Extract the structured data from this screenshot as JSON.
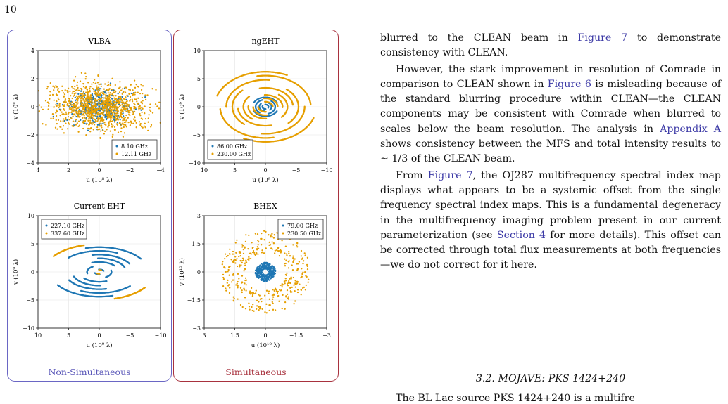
{
  "page_number": "10",
  "groups": {
    "left_label": "Non-Simultaneous",
    "right_label": "Simultaneous",
    "left_color": "#6a66c4",
    "right_color": "#a8323e"
  },
  "colors": {
    "low_freq": "#1f77b4",
    "high_freq": "#e69f00"
  },
  "chart_data": [
    {
      "type": "scatter",
      "title": "VLBA",
      "xlabel": "u (10⁸ λ)",
      "ylabel": "v (10⁸ λ)",
      "xlim": [
        4,
        -4
      ],
      "ylim": [
        -4,
        4
      ],
      "xticks": [
        4,
        2,
        0,
        -2,
        -4
      ],
      "yticks": [
        -4,
        -2,
        0,
        2,
        4
      ],
      "xtick_labels": [
        "4",
        "2",
        "0",
        "−2",
        "−4"
      ],
      "ytick_labels": [
        "−4",
        "−2",
        "0",
        "2",
        "4"
      ],
      "grid": true,
      "legend_position": "bottom-right",
      "series": [
        {
          "name": "8.10 GHz",
          "pattern": "cloud",
          "sx": 1.0,
          "sy": 0.55,
          "count": 200,
          "seed": 3,
          "x": [],
          "y": []
        },
        {
          "name": "12.11 GHz",
          "pattern": "cloud",
          "sx": 1.6,
          "sy": 0.85,
          "count": 520,
          "seed": 7,
          "x": [],
          "y": []
        }
      ]
    },
    {
      "type": "scatter",
      "title": "ngEHT",
      "xlabel": "u (10⁹ λ)",
      "ylabel": "v (10⁹ λ)",
      "xlim": [
        10,
        -10
      ],
      "ylim": [
        -10,
        10
      ],
      "xticks": [
        10,
        5,
        0,
        -5,
        -10
      ],
      "yticks": [
        -10,
        -5,
        0,
        5,
        10
      ],
      "xtick_labels": [
        "10",
        "5",
        "0",
        "−5",
        "−10"
      ],
      "ytick_labels": [
        "−10",
        "−5",
        "0",
        "5",
        "10"
      ],
      "grid": true,
      "legend_position": "bottom-left",
      "series": [
        {
          "name": "86.00 GHz",
          "pattern": "arcs",
          "radii": [
            0.5,
            1.0,
            1.6,
            2.1
          ],
          "ratio": 0.8,
          "span": 2.3,
          "seed": 11,
          "x": [],
          "y": []
        },
        {
          "name": "230.00 GHz",
          "pattern": "arcs",
          "radii": [
            1.2,
            2.0,
            2.8,
            3.6,
            4.5,
            5.4,
            6.4,
            7.4,
            8.3
          ],
          "ratio": 0.75,
          "span": 1.7,
          "seed": 5,
          "x": [],
          "y": []
        }
      ]
    },
    {
      "type": "scatter",
      "title": "Current EHT",
      "xlabel": "u (10⁹ λ)",
      "ylabel": "v (10⁹ λ)",
      "xlim": [
        10,
        -10
      ],
      "ylim": [
        -10,
        10
      ],
      "xticks": [
        10,
        5,
        0,
        -5,
        -10
      ],
      "yticks": [
        -10,
        -5,
        0,
        5,
        10
      ],
      "xtick_labels": [
        "10",
        "5",
        "0",
        "−5",
        "−10"
      ],
      "ytick_labels": [
        "−10",
        "−5",
        "0",
        "5",
        "10"
      ],
      "grid": true,
      "legend_position": "top-left",
      "series": [
        {
          "name": "227.10 GHz",
          "pattern": "arcs",
          "radii": [
            0.8,
            2.0,
            3.2,
            4.4,
            5.6,
            6.8,
            8.0
          ],
          "ratio": 0.55,
          "span": 1.3,
          "seed": 2,
          "x": [],
          "y": []
        },
        {
          "name": "337.60 GHz",
          "pattern": "arcs",
          "radii": [
            0.6,
            9.0
          ],
          "ratio": 0.55,
          "span": 0.7,
          "seed": 9,
          "x": [],
          "y": []
        }
      ]
    },
    {
      "type": "scatter",
      "title": "BHEX",
      "xlabel": "u (10¹⁰ λ)",
      "ylabel": "v (10¹⁰ λ)",
      "xlim": [
        3,
        -3
      ],
      "ylim": [
        -3,
        3
      ],
      "xticks": [
        3,
        1.5,
        0,
        -1.5,
        -3
      ],
      "yticks": [
        -3,
        -1.5,
        0,
        1.5,
        3
      ],
      "xtick_labels": [
        "3",
        "1.5",
        "0",
        "−1.5",
        "−3"
      ],
      "ytick_labels": [
        "−3",
        "−1.5",
        "0",
        "1.5",
        "3"
      ],
      "grid": true,
      "legend_position": "top-right",
      "series": [
        {
          "name": "79.00 GHz",
          "pattern": "ring",
          "rmin": 0.15,
          "rmax": 0.5,
          "count": 160,
          "seed": 4,
          "x": [],
          "y": []
        },
        {
          "name": "230.50 GHz",
          "pattern": "ring",
          "rmin": 1.0,
          "rmax": 2.2,
          "count": 190,
          "seed": 8,
          "x": [],
          "y": []
        }
      ]
    }
  ],
  "text": {
    "p1": {
      "a": "blurred to the CLEAN beam in ",
      "link": "Figure 7",
      "b": " to demonstrate consistency with CLEAN."
    },
    "p2": {
      "a": "However, the stark improvement in resolution of Comrade in comparison to CLEAN shown in ",
      "link1": "Figure 6",
      "b": " is misleading because of the standard blurring procedure within CLEAN—the CLEAN components may be consistent with Comrade when blurred to scales below the beam resolution.  The analysis in ",
      "link2": "Appendix A",
      "c": " shows consistency between the MFS and total intensity results to ∼ 1/3 of the CLEAN beam."
    },
    "p3": {
      "a": "From ",
      "link1": "Figure 7",
      "b": ", the OJ287 multifrequency spectral index map displays what appears to be a systemic offset from the single frequency spectral index maps.  This is a fundamental degeneracy in the multifrequency imaging problem present in our current parameterization (see ",
      "link2": "Section 4",
      "c": " for more details).  This offset can be corrected through total flux measurements at both frequencies—we do not correct for it here."
    },
    "section_heading": "3.2.  MOJAVE: PKS 1424+240",
    "bottom_fragment": "The BL Lac source PKS 1424+240 is a multifre"
  }
}
